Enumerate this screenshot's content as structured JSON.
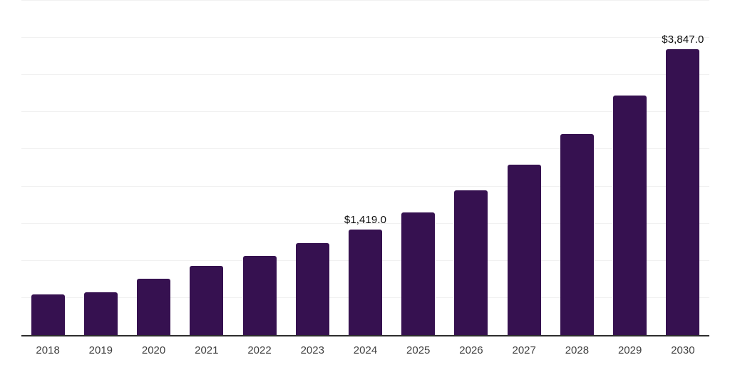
{
  "chart_data": {
    "type": "bar",
    "title": "",
    "xlabel": "",
    "ylabel": "",
    "categories": [
      "2018",
      "2019",
      "2020",
      "2021",
      "2022",
      "2023",
      "2024",
      "2025",
      "2026",
      "2027",
      "2028",
      "2029",
      "2030"
    ],
    "values": [
      550,
      575,
      755,
      935,
      1065,
      1235,
      1419,
      1655,
      1950,
      2290,
      2710,
      3225,
      3847
    ],
    "value_labels": [
      {
        "index": 6,
        "text": "$1,419.0"
      },
      {
        "index": 12,
        "text": "$3,847.0"
      }
    ],
    "ylim": [
      0,
      4500
    ],
    "gridline_step": 500,
    "grid": "horizontal",
    "legend": "none",
    "y_tick_labels_visible": false,
    "colors": {
      "bar": "#361150",
      "axis_line": "#2d2d2d",
      "gridline": "#f1f1f1",
      "value_label": "#0d0d0d",
      "tick_label": "#3f3f3f",
      "background": "#ffffff"
    }
  }
}
